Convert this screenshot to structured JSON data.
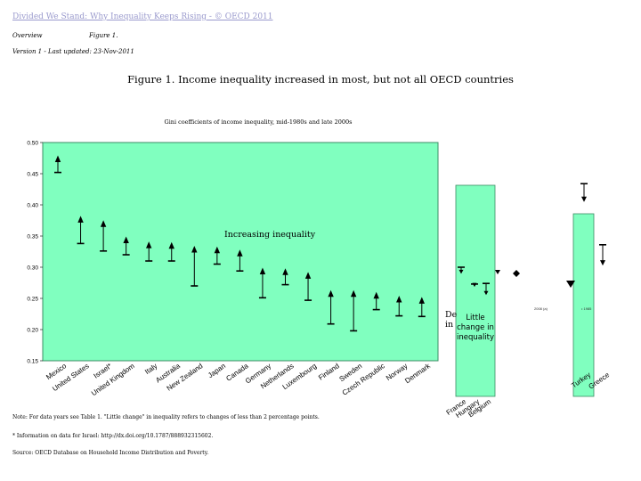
{
  "header": {
    "link": "Divided We Stand: Why Inequality Keeps Rising - © OECD 2011",
    "overview": "Overview",
    "figure": "Figure 1.",
    "version": "Version 1 - Last updated: 23-Nov-2011"
  },
  "colors": {
    "plot_bg": "#80ffbf",
    "plot_border": "#3c8c64",
    "mark": "#000000",
    "link": "#9a9acd"
  },
  "chart_data": {
    "type": "dot-range",
    "title": "Figure 1. Income inequality increased in most, but not all OECD countries",
    "subtitle": "Gini coefficients of income inequality, mid-1980s and late 2000s",
    "ylim": [
      0.15,
      0.5
    ],
    "yticks": [
      "0.15",
      "0.20",
      "0.25",
      "0.30",
      "0.35",
      "0.40",
      "0.45",
      "0.50"
    ],
    "annotations": {
      "increasing": "Increasing inequality",
      "decreasing_partial": [
        "De",
        "in"
      ],
      "little_change": [
        "Little",
        "change in",
        "inequality"
      ]
    },
    "increasing_group": {
      "categories": [
        "Mexico",
        "United States",
        "Israel*",
        "United Kingdom",
        "Italy",
        "Australia",
        "New Zealand",
        "Japan",
        "Canada",
        "Germany",
        "Netherlands",
        "Luxembourg",
        "Finland",
        "Sweden",
        "Czech Republic",
        "Norway",
        "Denmark"
      ],
      "late_2000s": [
        0.475,
        0.378,
        0.371,
        0.345,
        0.337,
        0.336,
        0.33,
        0.329,
        0.324,
        0.295,
        0.294,
        0.288,
        0.259,
        0.259,
        0.256,
        0.25,
        0.248
      ],
      "mid_1980s": [
        0.452,
        0.338,
        0.326,
        0.32,
        0.31,
        0.31,
        0.27,
        0.305,
        0.294,
        0.251,
        0.272,
        0.247,
        0.209,
        0.198,
        0.232,
        0.222,
        0.221
      ]
    },
    "little_change_group": {
      "categories": [
        "France",
        "Hungary",
        "Belgium"
      ],
      "late_2000s": [
        0.293,
        0.272,
        0.259
      ],
      "mid_1980s": [
        0.3,
        0.273,
        0.274
      ]
    },
    "decreasing_group": {
      "categories": [
        "Turkey",
        "Greece"
      ],
      "late_2000s": [
        0.409,
        0.307
      ],
      "mid_1980s": [
        0.434,
        0.336
      ]
    },
    "legend_fragments": [
      "2008 (a)",
      "1985"
    ]
  },
  "notes": {
    "note": "Note: For data years see Table 1. \"Little change\" in inequality refers to changes of less than 2 percentage points.",
    "israel": "* Information on data for Israel: http://dx.doi.org/10.1787/888932315602.",
    "source": "Source: OECD Database on Household Income Distribution and Poverty."
  }
}
